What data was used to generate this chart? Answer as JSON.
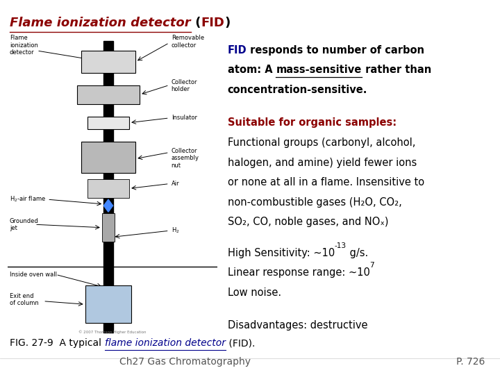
{
  "title_underline_part": "Flame ionization detector",
  "title_color_underline": "#8B0000",
  "title_color_bold": "#000000",
  "bg_color": "#FFFFFF",
  "para1_color_fid": "#00008B",
  "para2_heading": "Suitable for organic samples:",
  "para2_heading_color": "#8B0000",
  "para2_color": "#000000",
  "para3_color": "#000000",
  "para4": "Disadvantages: destructive",
  "para4_color": "#000000",
  "fig_caption_color": "#000000",
  "fig_caption_link_color": "#00008B",
  "footer_left": "Ch27 Gas Chromatography",
  "footer_right": "P. 726",
  "footer_color": "#555555",
  "font_size_title": 13,
  "font_size_body": 10.5,
  "font_size_caption": 10,
  "font_size_footer": 10
}
